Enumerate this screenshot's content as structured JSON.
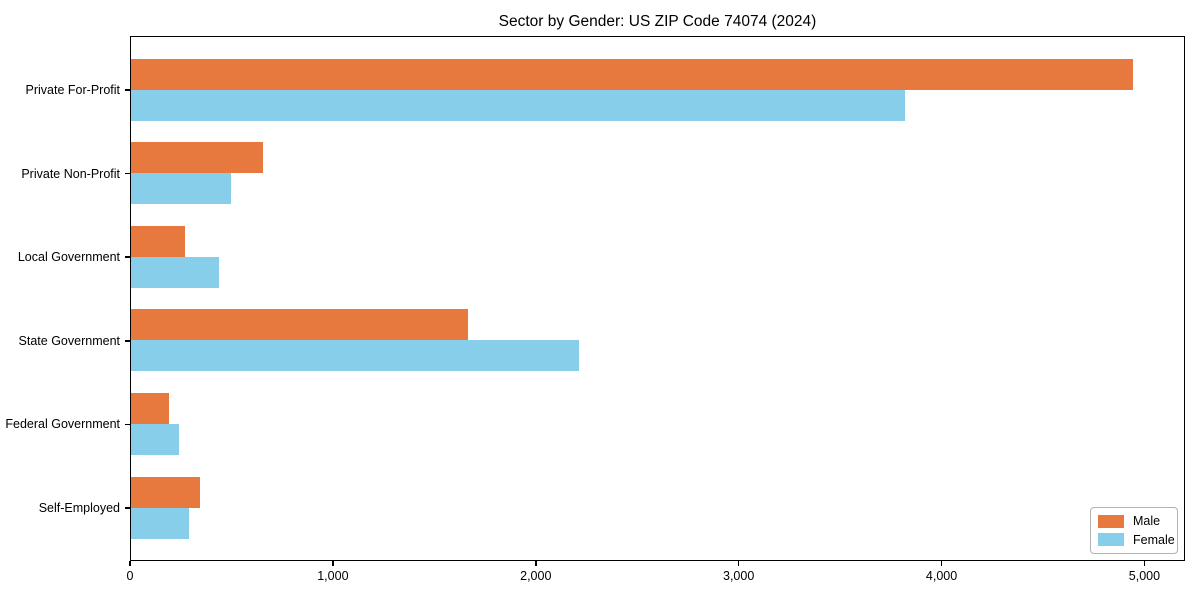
{
  "figure": {
    "background": "#ffffff",
    "spine_color": "#000000",
    "text_color": "#000000",
    "legend_border_color": "#b3b3b3"
  },
  "chart_data": {
    "type": "bar",
    "orientation": "horizontal",
    "title": "Sector by Gender: US ZIP Code 74074 (2024)",
    "categories": [
      "Private For-Profit",
      "Private Non-Profit",
      "Local Government",
      "State Government",
      "Federal Government",
      "Self-Employed"
    ],
    "series": [
      {
        "name": "Male",
        "color": "#e8793e",
        "values": [
          4950,
          650,
          265,
          1665,
          190,
          340
        ]
      },
      {
        "name": "Female",
        "color": "#87ceeb",
        "values": [
          3820,
          495,
          435,
          2210,
          235,
          285
        ]
      }
    ],
    "xlabel": "",
    "ylabel": "",
    "xlim": [
      0,
      5200
    ],
    "x_ticks": [
      {
        "value": 0,
        "label": "0"
      },
      {
        "value": 1000,
        "label": "1,000"
      },
      {
        "value": 2000,
        "label": "2,000"
      },
      {
        "value": 3000,
        "label": "3,000"
      },
      {
        "value": 4000,
        "label": "4,000"
      },
      {
        "value": 5000,
        "label": "5,000"
      }
    ],
    "grid": false,
    "legend_position": "lower right"
  }
}
